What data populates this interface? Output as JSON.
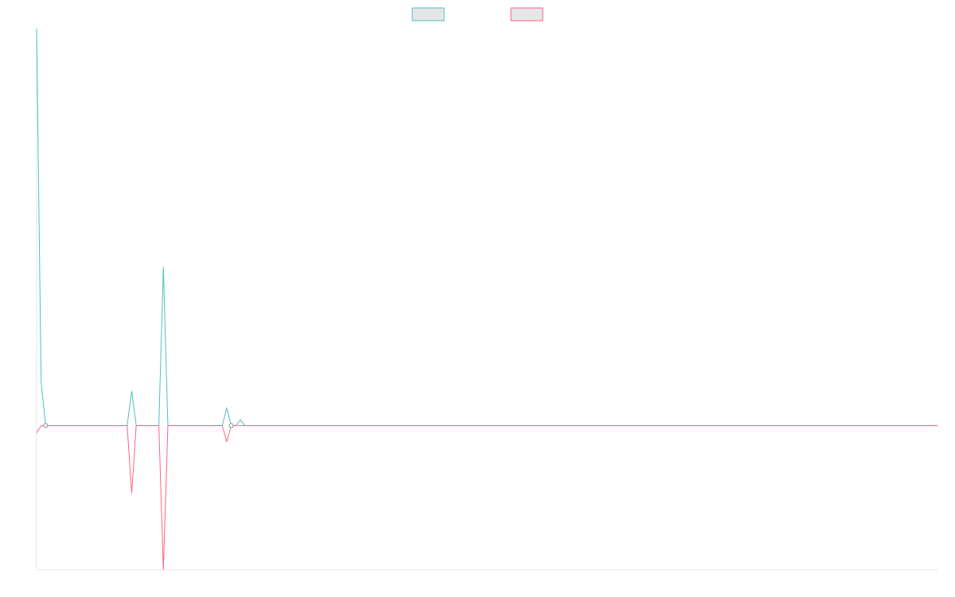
{
  "chart_data": {
    "type": "line",
    "title": "",
    "xlabel": "",
    "ylabel": "",
    "ylim": [
      -1.0,
      2.75
    ],
    "grid": false,
    "legend_position": "top",
    "x_count": 200,
    "series": [
      {
        "name": "",
        "color": "#4bc0c0",
        "fill": "#e6e6e6",
        "points": [
          [
            0,
            2.75
          ],
          [
            1,
            0.3
          ],
          [
            2,
            0.0
          ],
          [
            20,
            0.0
          ],
          [
            21,
            0.24
          ],
          [
            22,
            0.0
          ],
          [
            27,
            0.0
          ],
          [
            28,
            1.1
          ],
          [
            29,
            0.0
          ],
          [
            41,
            0.0
          ],
          [
            42,
            0.12
          ],
          [
            43,
            0.0
          ],
          [
            44,
            0.0
          ],
          [
            45,
            0.04
          ],
          [
            46,
            0.0
          ],
          [
            199,
            0.0
          ]
        ]
      },
      {
        "name": "",
        "color": "#ff6384",
        "fill": "#e6e6e6",
        "points": [
          [
            0,
            -0.05
          ],
          [
            1,
            0.0
          ],
          [
            2,
            0.0
          ],
          [
            20,
            0.0
          ],
          [
            21,
            -0.47
          ],
          [
            22,
            0.0
          ],
          [
            27,
            0.0
          ],
          [
            28,
            -1.0
          ],
          [
            29,
            0.0
          ],
          [
            41,
            0.0
          ],
          [
            42,
            -0.11
          ],
          [
            43,
            0.0
          ],
          [
            199,
            0.0
          ]
        ]
      }
    ]
  }
}
